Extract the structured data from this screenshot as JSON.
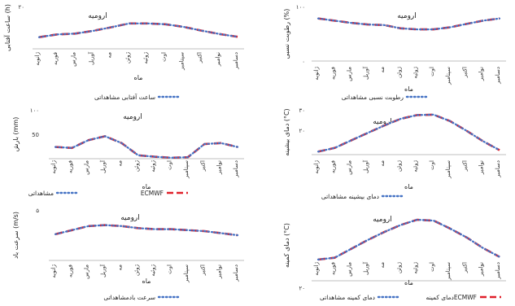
{
  "chart_data": [
    {
      "type": "line",
      "title": "ارومیه",
      "xlabel": "ماه",
      "ylabel": "رطوبت نسبی (%)",
      "ylim": [
        0,
        100
      ],
      "yticks": [
        "۰",
        "۱۰۰"
      ],
      "categories": [
        "ژانویه",
        "فوریه",
        "مارس",
        "آوریل",
        "مه",
        "ژوئن",
        "ژوئیه",
        "اوت",
        "سپتامبر",
        "اکتبر",
        "نوامبر",
        "دسامبر"
      ],
      "series": [
        {
          "name": "رطوبت نسبی مشاهداتی",
          "style": "dotted",
          "color": "#4472c4",
          "values": [
            78,
            74,
            70,
            67,
            66,
            60,
            58,
            58,
            62,
            68,
            74,
            78
          ]
        },
        {
          "name": "",
          "style": "dashed",
          "color": "#e0202a",
          "values": [
            78,
            74,
            70,
            67,
            66,
            60,
            58,
            58,
            62,
            68,
            74,
            78
          ]
        }
      ]
    },
    {
      "type": "line",
      "title": "ارومیه",
      "xlabel": "ماه",
      "ylabel": "ساعت آفتابی (h)",
      "ylim": [
        0,
        20
      ],
      "yticks": [
        "۲۰"
      ],
      "categories": [
        "ژانویه",
        "فوریه",
        "مارس",
        "آوریل",
        "مه",
        "ژوئن",
        "ژوئیه",
        "اوت",
        "سپتامبر",
        "اکتبر",
        "نوامبر",
        "دسامبر"
      ],
      "series": [
        {
          "name": "ساعت آفتابی مشاهداتی",
          "style": "dotted",
          "color": "#4472c4",
          "values": [
            5.5,
            6.8,
            7.2,
            8.5,
            10.2,
            12.0,
            12.0,
            11.6,
            10.4,
            8.6,
            7.0,
            5.7
          ]
        },
        {
          "name": "",
          "style": "dashed",
          "color": "#e0202a",
          "values": [
            5.5,
            6.8,
            7.2,
            8.5,
            10.2,
            12.0,
            12.0,
            11.6,
            10.4,
            8.6,
            7.0,
            5.7
          ]
        }
      ]
    },
    {
      "type": "line",
      "title": "ارومیه",
      "xlabel": "ماه",
      "ylabel": "دمای بیشینه (°C)",
      "ylim": [
        0,
        30
      ],
      "yticks": [
        "۳۰",
        "۲۰"
      ],
      "categories": [
        "ژانویه",
        "فوریه",
        "مارس",
        "آوریل",
        "مه",
        "ژوئن",
        "ژوئیه",
        "اوت",
        "سپتامبر",
        "اکتبر",
        "نوامبر",
        "دسامبر"
      ],
      "series": [
        {
          "name": "دمای بیشینه مشاهداتی",
          "style": "dotted",
          "color": "#4472c4",
          "values": [
            2,
            4.5,
            9.5,
            14.5,
            19.5,
            24,
            26.5,
            26.8,
            22.5,
            16,
            9,
            3
          ]
        },
        {
          "name": "",
          "style": "dashed",
          "color": "#e0202a",
          "values": [
            2,
            4.5,
            9.5,
            14.5,
            19.5,
            24,
            26.5,
            26.8,
            22.5,
            16,
            9,
            3
          ]
        }
      ]
    },
    {
      "type": "line",
      "title": "ارومیه",
      "xlabel": "ماه",
      "ylabel": "بارش (mm)",
      "ylim": [
        0,
        100
      ],
      "yticks": [
        "۱۰۰",
        "50"
      ],
      "categories": [
        "ژانویه",
        "فوریه",
        "مارس",
        "آوریل",
        "مه",
        "ژوئن",
        "ژوئیه",
        "اوت",
        "سپتامبر",
        "اکتبر",
        "نوامبر",
        "دسامبر"
      ],
      "series": [
        {
          "name": "مشاهداتی",
          "style": "dotted",
          "color": "#4472c4",
          "values": [
            24,
            22,
            38,
            46,
            32,
            7,
            4,
            2,
            3,
            30,
            32,
            24
          ]
        },
        {
          "name": "ECMWF",
          "style": "dashed",
          "color": "#e0202a",
          "values": [
            24,
            22,
            38,
            46,
            32,
            7,
            4,
            2,
            3,
            30,
            32,
            24
          ]
        }
      ]
    },
    {
      "type": "line",
      "title": "ارومیه",
      "xlabel": "ماه",
      "ylabel": "دمای کمینه (°C)",
      "ylim": [
        -20,
        20
      ],
      "yticks": [
        "۲۰"
      ],
      "categories": [
        "ژانویه",
        "فوریه",
        "مارس",
        "آوریل",
        "مه",
        "ژوئن",
        "ژوئیه",
        "اوت",
        "سپتامبر",
        "اکتبر",
        "نوامبر",
        "دسامبر"
      ],
      "series": [
        {
          "name": "دمای کمینه مشاهداتی",
          "style": "dotted",
          "color": "#4472c4",
          "values": [
            -8,
            -7,
            -2,
            3,
            7.5,
            11.5,
            14.5,
            14,
            9.5,
            4.5,
            -1.5,
            -6.5
          ]
        },
        {
          "name": "دمای کمینهECMWF",
          "style": "dashed",
          "color": "#e0202a",
          "values": [
            -8,
            -7,
            -2,
            3,
            7.5,
            11.5,
            14.5,
            14,
            9.5,
            4.5,
            -1.5,
            -6.5
          ]
        }
      ]
    },
    {
      "type": "line",
      "title": "ارومیه",
      "xlabel": "ماه",
      "ylabel": "سرعت باد (m/s)",
      "ylim": [
        0,
        5
      ],
      "yticks": [
        "۵"
      ],
      "categories": [
        "ژانویه",
        "فوریه",
        "مارس",
        "آوریل",
        "مه",
        "ژوئن",
        "ژوئیه",
        "اوت",
        "سپتامبر",
        "اکتبر",
        "نوامبر",
        "دسامبر"
      ],
      "series": [
        {
          "name": "سرعت بادمشاهداتی",
          "style": "dotted",
          "color": "#4472c4",
          "values": [
            2.6,
            3.0,
            3.4,
            3.5,
            3.4,
            3.2,
            3.1,
            3.1,
            3.0,
            2.9,
            2.7,
            2.5
          ]
        },
        {
          "name": "",
          "style": "dashed",
          "color": "#e0202a",
          "values": [
            2.6,
            3.0,
            3.4,
            3.5,
            3.4,
            3.2,
            3.1,
            3.1,
            3.0,
            2.9,
            2.7,
            2.5
          ]
        }
      ]
    }
  ]
}
